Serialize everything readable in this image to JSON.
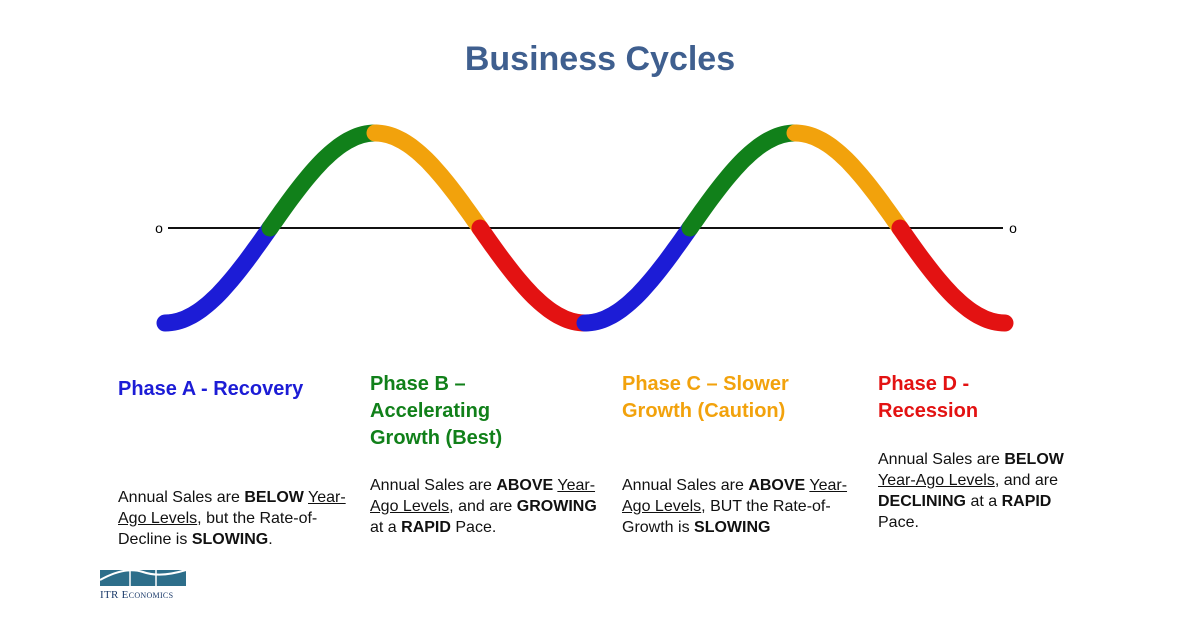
{
  "title": "Business Cycles",
  "axis_labels": [
    "o",
    "o"
  ],
  "phases": [
    {
      "name": "Phase A - Recovery",
      "color": "#1c1cd6",
      "description": [
        {
          "text": "Annual Sales are "
        },
        {
          "text": "BELOW",
          "style": "bold"
        },
        {
          "text": " "
        },
        {
          "text": "Year-Ago Levels",
          "style": "underline"
        },
        {
          "text": ", but the Rate-of-Decline is "
        },
        {
          "text": "SLOWING",
          "style": "bold"
        },
        {
          "text": "."
        }
      ]
    },
    {
      "name": "Phase B – Accelerating Growth (Best)",
      "color": "#11801a",
      "description": [
        {
          "text": "Annual Sales are "
        },
        {
          "text": "ABOVE",
          "style": "bold"
        },
        {
          "text": " "
        },
        {
          "text": "Year-Ago Levels",
          "style": "underline"
        },
        {
          "text": ", and are "
        },
        {
          "text": "GROWING",
          "style": "bold"
        },
        {
          "text": " at a "
        },
        {
          "text": "RAPID",
          "style": "bold"
        },
        {
          "text": " Pace."
        }
      ]
    },
    {
      "name": "Phase C – Slower Growth (Caution)",
      "color": "#f2a20c",
      "description": [
        {
          "text": "Annual Sales are "
        },
        {
          "text": "ABOVE",
          "style": "bold"
        },
        {
          "text": " "
        },
        {
          "text": "Year-Ago Levels",
          "style": "underline"
        },
        {
          "text": ", BUT the Rate-of-Growth is "
        },
        {
          "text": "SLOWING",
          "style": "bold"
        }
      ]
    },
    {
      "name": "Phase D - Recession",
      "color": "#e31212",
      "description": [
        {
          "text": "Annual Sales are "
        },
        {
          "text": "BELOW",
          "style": "bold"
        },
        {
          "text": " "
        },
        {
          "text": "Year-Ago Levels",
          "style": "underline"
        },
        {
          "text": ", and are "
        },
        {
          "text": "DECLINING",
          "style": "bold"
        },
        {
          "text": " at a "
        },
        {
          "text": "RAPID",
          "style": "bold"
        },
        {
          "text": " Pace."
        }
      ]
    }
  ],
  "logo": "ITR Economics"
}
